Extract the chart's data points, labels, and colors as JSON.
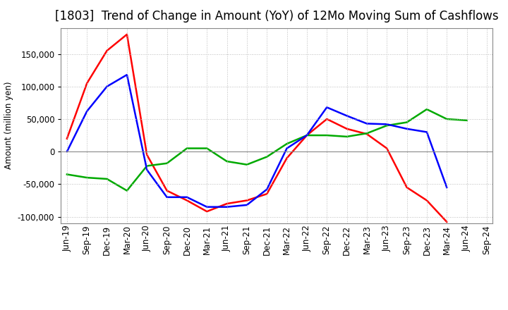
{
  "title": "[1803]  Trend of Change in Amount (YoY) of 12Mo Moving Sum of Cashflows",
  "ylabel": "Amount (million yen)",
  "labels": [
    "Jun-19",
    "Sep-19",
    "Dec-19",
    "Mar-20",
    "Jun-20",
    "Sep-20",
    "Dec-20",
    "Mar-21",
    "Jun-21",
    "Sep-21",
    "Dec-21",
    "Mar-22",
    "Jun-22",
    "Sep-22",
    "Dec-22",
    "Mar-23",
    "Jun-23",
    "Sep-23",
    "Dec-23",
    "Mar-24",
    "Jun-24",
    "Sep-24"
  ],
  "operating": [
    20000,
    105000,
    155000,
    180000,
    -5000,
    -60000,
    -75000,
    -92000,
    -80000,
    -75000,
    -65000,
    -10000,
    25000,
    50000,
    35000,
    27000,
    5000,
    -55000,
    -75000,
    -108000,
    null,
    null
  ],
  "investing": [
    -35000,
    -40000,
    -42000,
    -60000,
    -22000,
    -18000,
    5000,
    5000,
    -15000,
    -20000,
    -8000,
    12000,
    25000,
    25000,
    23000,
    28000,
    40000,
    45000,
    65000,
    50000,
    48000,
    null
  ],
  "free": [
    0,
    62000,
    100000,
    118000,
    -28000,
    -70000,
    -70000,
    -85000,
    -85000,
    -82000,
    -58000,
    5000,
    25000,
    68000,
    55000,
    43000,
    42000,
    35000,
    30000,
    -55000,
    null,
    null
  ],
  "operating_color": "#ff0000",
  "investing_color": "#00aa00",
  "free_color": "#0000ff",
  "ylim": [
    -110000,
    190000
  ],
  "yticks": [
    -100000,
    -50000,
    0,
    50000,
    100000,
    150000
  ],
  "background_color": "#ffffff",
  "grid_color": "#bbbbbb",
  "title_fontsize": 12,
  "axis_fontsize": 8.5,
  "legend_fontsize": 9.5
}
